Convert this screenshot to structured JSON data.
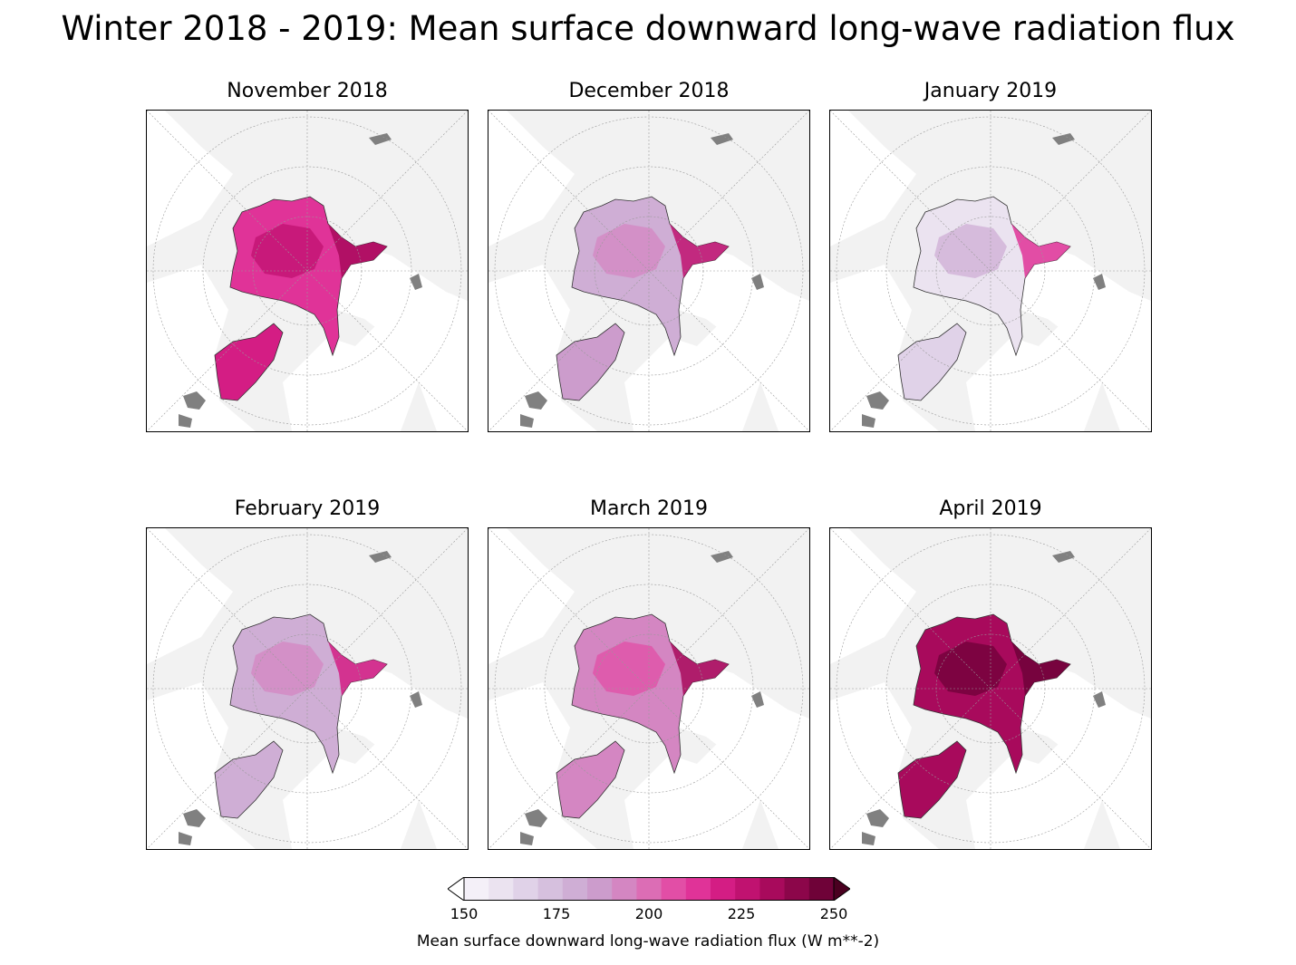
{
  "title": "Winter 2018 - 2019: Mean surface downward long-wave radiation flux",
  "panels": [
    {
      "id": "nov",
      "title": "November 2018",
      "intensity": 0.62,
      "accent": 0.8
    },
    {
      "id": "dec",
      "title": "December 2018",
      "intensity": 0.3,
      "accent": 0.75
    },
    {
      "id": "jan",
      "title": "January 2019",
      "intensity": 0.12,
      "accent": 0.6
    },
    {
      "id": "feb",
      "title": "February 2019",
      "intensity": 0.28,
      "accent": 0.7
    },
    {
      "id": "mar",
      "title": "March 2019",
      "intensity": 0.4,
      "accent": 0.8
    },
    {
      "id": "apr",
      "title": "April 2019",
      "intensity": 0.8,
      "accent": 0.95
    }
  ],
  "colorbar": {
    "min": 150,
    "max": 250,
    "ticks": [
      "150",
      "175",
      "200",
      "225",
      "250"
    ],
    "label": "Mean surface downward long-wave radiation flux (W m**-2)",
    "colors": [
      "#f4f0f8",
      "#ebe3f0",
      "#e0d2e8",
      "#d6c0de",
      "#cfaed5",
      "#cc9ccc",
      "#d486c2",
      "#dc6db5",
      "#e24ea6",
      "#e03398",
      "#d41d84",
      "#c01270",
      "#a80a5c",
      "#8c064a",
      "#6f0238"
    ]
  },
  "colors": {
    "land": "#f2f2f2",
    "ocean": "#ffffff",
    "lakes": "#808080",
    "coast": "#000000"
  }
}
